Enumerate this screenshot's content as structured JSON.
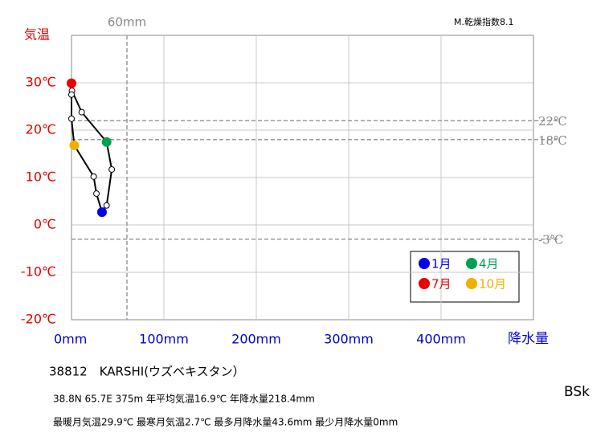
{
  "chart_data": {
    "type": "line",
    "y_label": "気温",
    "x_label": "降水量",
    "index_label": "M.乾燥指数8.1",
    "climate_class": "BSk",
    "station": "38812　KARSHI(ウズベキスタン）",
    "annotations": [
      "38.8N  65.7E 375m  年平均気温16.9℃ 年降水量218.4mm",
      "最暖月気温29.9℃ 最寒月気温2.7℃ 最多月降水量43.6mm 最少月降水量0mm"
    ],
    "x": [
      33,
      38,
      43.6,
      38,
      11,
      0.5,
      0,
      0,
      0,
      3,
      24,
      27
    ],
    "series": [
      {
        "color": "#000000",
        "values": [
          2.7,
          4.1,
          11.7,
          17.5,
          23.8,
          28.3,
          29.9,
          27.5,
          22.4,
          16.8,
          10.2,
          6.6
        ]
      }
    ],
    "highlights": [
      {
        "index": 0,
        "name": "1月",
        "color": "#0000ee"
      },
      {
        "index": 3,
        "name": "4月",
        "color": "#00a050"
      },
      {
        "index": 6,
        "name": "7月",
        "color": "#ee0000"
      },
      {
        "index": 9,
        "name": "10月",
        "color": "#f0b000"
      }
    ],
    "xlim": [
      0,
      500
    ],
    "ylim": [
      -20,
      40
    ],
    "xticks": [
      {
        "value": 0,
        "label": "0mm"
      },
      {
        "value": 100,
        "label": "100mm"
      },
      {
        "value": 200,
        "label": "200mm"
      },
      {
        "value": 300,
        "label": "300mm"
      },
      {
        "value": 400,
        "label": "400mm"
      }
    ],
    "yticks": [
      {
        "value": -20,
        "label": "-20℃"
      },
      {
        "value": -10,
        "label": "-10℃"
      },
      {
        "value": 0,
        "label": "0℃"
      },
      {
        "value": 10,
        "label": "10℃"
      },
      {
        "value": 20,
        "label": "20℃"
      },
      {
        "value": 30,
        "label": "30℃"
      }
    ],
    "x_reference": [
      {
        "value": 60,
        "label": "60mm"
      }
    ],
    "y_reference": [
      {
        "value": 22,
        "label": "22℃"
      },
      {
        "value": 18,
        "label": "18℃"
      },
      {
        "value": -3,
        "label": "-3℃"
      }
    ],
    "grid": true
  }
}
